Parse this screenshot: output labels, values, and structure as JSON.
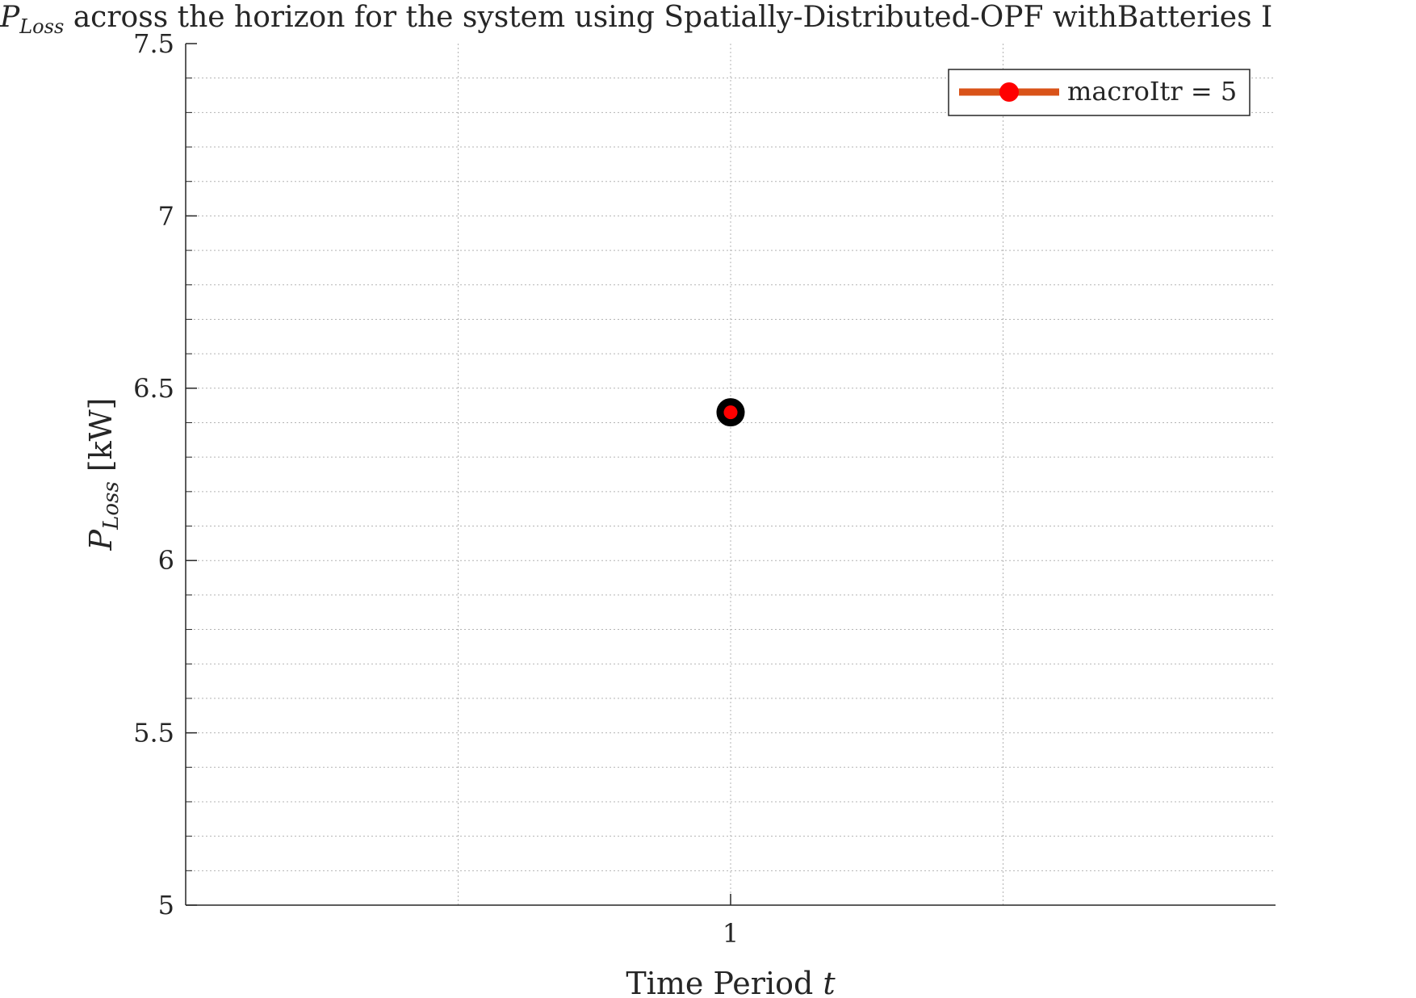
{
  "chart_data": {
    "type": "scatter",
    "title": {
      "symbol": "P",
      "subscript": "Loss",
      "text": " across the horizon for the system using Spatially-Distributed-OPF withBatteries I"
    },
    "xlabel": {
      "text": "Time Period ",
      "variable": "t"
    },
    "ylabel": {
      "symbol": "P",
      "subscript": "Loss",
      "unit": " [kW]"
    },
    "xlim": [
      0.5,
      1.5
    ],
    "ylim": [
      5,
      7.5
    ],
    "x_ticks": [
      1
    ],
    "x_tick_labels": [
      "1"
    ],
    "y_ticks": [
      5,
      5.5,
      6,
      6.5,
      7,
      7.5
    ],
    "y_tick_labels": [
      "5",
      "5.5",
      "6",
      "6.5",
      "7",
      "7.5"
    ],
    "grid": true,
    "minor_grid": true,
    "legend_position": "top-right",
    "series": [
      {
        "name": "macroItr = 5",
        "x": [
          1
        ],
        "y": [
          6.43
        ],
        "line_color": "#d95319",
        "marker_edge_color": "#000000",
        "marker_face_color": "#ff0000"
      }
    ]
  }
}
